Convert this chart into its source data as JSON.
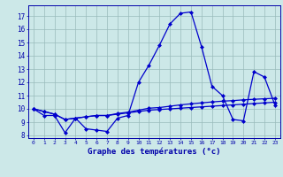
{
  "title": "Graphe des températures (°c)",
  "xlabel_hours": [
    0,
    1,
    2,
    3,
    4,
    5,
    6,
    7,
    8,
    9,
    10,
    11,
    12,
    13,
    14,
    15,
    16,
    17,
    18,
    19,
    20,
    21,
    22,
    23
  ],
  "yticks": [
    8,
    9,
    10,
    11,
    12,
    13,
    14,
    15,
    16,
    17
  ],
  "line1": [
    10.0,
    9.5,
    9.5,
    8.2,
    9.3,
    8.5,
    8.4,
    8.3,
    9.3,
    9.5,
    12.0,
    13.3,
    14.8,
    16.4,
    17.2,
    17.3,
    14.7,
    11.7,
    11.0,
    9.2,
    9.1,
    12.8,
    12.4,
    10.3
  ],
  "line2": [
    10.0,
    9.8,
    9.6,
    9.2,
    9.3,
    9.4,
    9.5,
    9.5,
    9.6,
    9.7,
    9.8,
    9.9,
    9.95,
    10.0,
    10.05,
    10.1,
    10.15,
    10.2,
    10.25,
    10.3,
    10.35,
    10.4,
    10.45,
    10.5
  ],
  "line3": [
    10.0,
    9.8,
    9.6,
    9.2,
    9.3,
    9.4,
    9.5,
    9.5,
    9.65,
    9.75,
    9.9,
    10.05,
    10.1,
    10.2,
    10.3,
    10.38,
    10.45,
    10.52,
    10.58,
    10.62,
    10.68,
    10.72,
    10.76,
    10.8
  ],
  "line_color": "#0000cc",
  "bg_color": "#cce8e8",
  "grid_color": "#99bbbb",
  "marker": "D",
  "marker_size": 2.0,
  "line_width": 0.9
}
